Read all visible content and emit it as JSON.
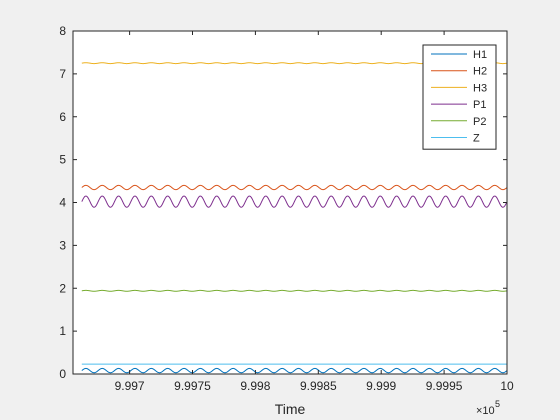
{
  "chart_data": {
    "type": "line",
    "title": "",
    "xlabel": "Time",
    "ylabel": "",
    "x_exponent_label": "×10",
    "x_exponent_power": "5",
    "xlim": [
      99965.5,
      100000
    ],
    "ylim": [
      0,
      8
    ],
    "x_ticks": [
      99965,
      99970,
      99975,
      99980,
      99985,
      99990,
      99995,
      100000
    ],
    "x_tick_labels": [
      "9.9965",
      "9.997",
      "9.9975",
      "9.998",
      "9.9985",
      "9.999",
      "9.9995",
      "10"
    ],
    "y_ticks": [
      0,
      1,
      2,
      3,
      4,
      5,
      6,
      7,
      8
    ],
    "y_tick_labels": [
      "0",
      "1",
      "2",
      "3",
      "4",
      "5",
      "6",
      "7",
      "8"
    ],
    "grid": false,
    "legend_position": "top-right",
    "series": [
      {
        "name": "H1",
        "color": "#0072BD",
        "oscillation": {
          "mean": 0.08,
          "amplitude": 0.05,
          "period": 1.3,
          "x_start": 99966.2,
          "x_end": 100000
        }
      },
      {
        "name": "H2",
        "color": "#D95319",
        "oscillation": {
          "mean": 4.35,
          "amplitude": 0.05,
          "period": 1.3,
          "x_start": 99966.2,
          "x_end": 100000
        }
      },
      {
        "name": "H3",
        "color": "#EDB120",
        "oscillation": {
          "mean": 7.25,
          "amplitude": 0.01,
          "period": 1.3,
          "x_start": 99966.2,
          "x_end": 100000
        }
      },
      {
        "name": "P1",
        "color": "#7E2F8E",
        "oscillation": {
          "mean": 4.02,
          "amplitude": 0.13,
          "period": 1.3,
          "x_start": 99966.2,
          "x_end": 100000
        }
      },
      {
        "name": "P2",
        "color": "#77AC30",
        "oscillation": {
          "mean": 1.94,
          "amplitude": 0.01,
          "period": 1.3,
          "x_start": 99966.2,
          "x_end": 100000
        }
      },
      {
        "name": "Z",
        "color": "#4DBEEE",
        "oscillation": {
          "mean": 0.23,
          "amplitude": 0.0,
          "period": 1.3,
          "x_start": 99966.2,
          "x_end": 100000
        }
      }
    ]
  }
}
